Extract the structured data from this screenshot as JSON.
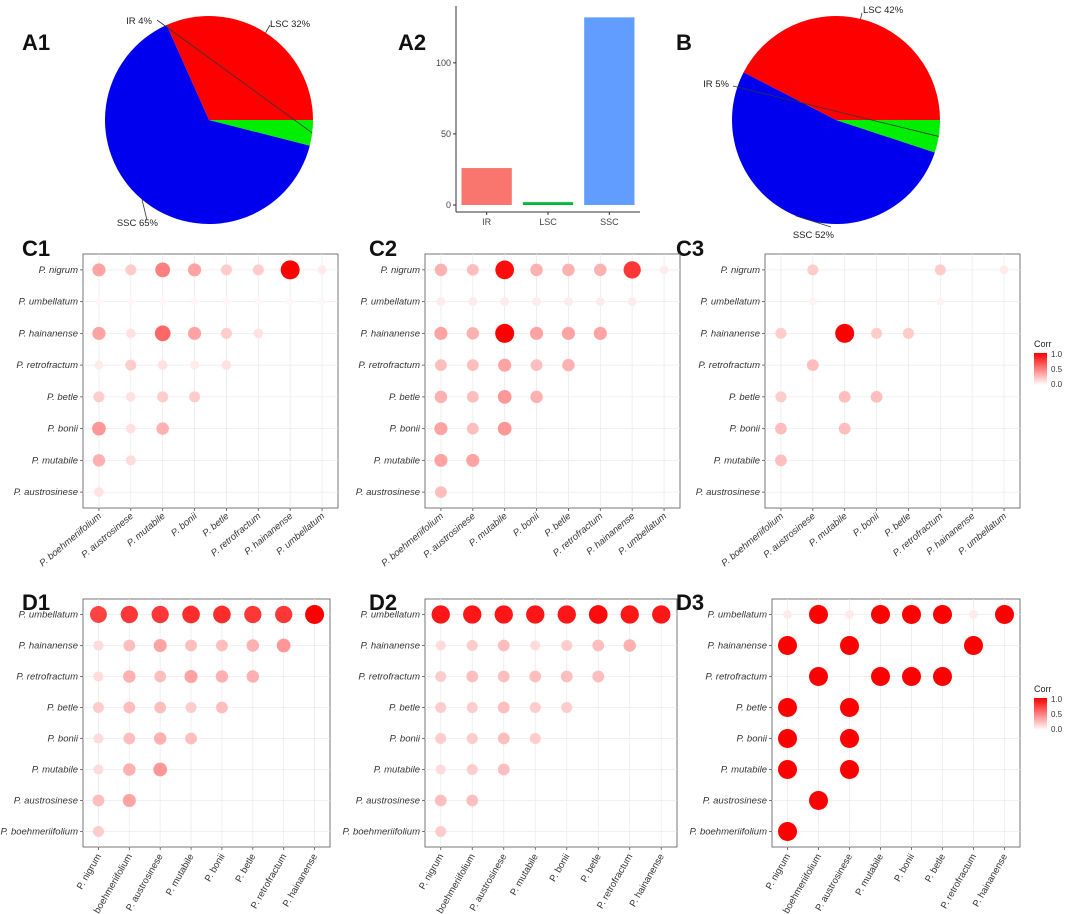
{
  "colors": {
    "lsc": "#ff0000",
    "ir": "#00ee00",
    "ssc": "#0000ee",
    "bar_ir": "#f8766d",
    "bar_lsc": "#00ba38",
    "bar_ssc": "#619cff",
    "corr_high": "#ff0000",
    "corr_low": "#ffffff"
  },
  "panels": {
    "A1": "A1",
    "A2": "A2",
    "B": "B",
    "C1": "C1",
    "C2": "C2",
    "C3": "C3",
    "D1": "D1",
    "D2": "D2",
    "D3": "D3"
  },
  "legend": {
    "title": "Corr",
    "ticks": [
      "1.0",
      "0.5",
      "0.0"
    ]
  },
  "chart_data": [
    {
      "id": "A1",
      "type": "pie",
      "slices": [
        {
          "label": "LSC 32%",
          "key": "LSC",
          "value": 32
        },
        {
          "label": "SSC 65%",
          "key": "SSC",
          "value": 65
        },
        {
          "label": "IR 4%",
          "key": "IR",
          "value": 4
        }
      ]
    },
    {
      "id": "A2",
      "type": "bar",
      "categories": [
        "IR",
        "LSC",
        "SSC"
      ],
      "values": [
        26,
        2,
        132
      ],
      "yticks": [
        "0",
        "50",
        "100"
      ],
      "ylim": [
        0,
        140
      ]
    },
    {
      "id": "B",
      "type": "pie",
      "slices": [
        {
          "label": "LSC 42%",
          "key": "LSC",
          "value": 42
        },
        {
          "label": "SSC 52%",
          "key": "SSC",
          "value": 52
        },
        {
          "label": "IR 5%",
          "key": "IR",
          "value": 5
        }
      ]
    },
    {
      "id": "C1",
      "type": "scatter",
      "subtype": "correlation-matrix",
      "rows": [
        "P. nigrum",
        "P. umbellatum",
        "P. hainanense",
        "P. retrofractum",
        "P. betle",
        "P. bonii",
        "P. mutabile",
        "P. austrosinese"
      ],
      "cols": [
        "P. boehmeriifolium",
        "P. austrosinese",
        "P. mutabile",
        "P. bonii",
        "P. betle",
        "P. retrofractum",
        "P. hainanense",
        "P. umbellatum"
      ],
      "values": [
        [
          0.3,
          0.15,
          0.45,
          0.3,
          0.15,
          0.15,
          1.0,
          0.05
        ],
        [
          0.02,
          0.02,
          0.02,
          0.02,
          0.02,
          0.02,
          0.02,
          0.02
        ],
        [
          0.3,
          0.08,
          0.55,
          0.3,
          0.15,
          0.08,
          0,
          0
        ],
        [
          0.05,
          0.15,
          0.08,
          0.05,
          0.08,
          0,
          0,
          0
        ],
        [
          0.15,
          0.08,
          0.15,
          0.15,
          0,
          0,
          0,
          0
        ],
        [
          0.35,
          0.08,
          0.25,
          0,
          0,
          0,
          0,
          0
        ],
        [
          0.25,
          0.1,
          0,
          0,
          0,
          0,
          0,
          0
        ],
        [
          0.08,
          0,
          0,
          0,
          0,
          0,
          0,
          0
        ]
      ]
    },
    {
      "id": "C2",
      "type": "scatter",
      "subtype": "correlation-matrix",
      "rows": [
        "P. nigrum",
        "P. umbellatum",
        "P. hainanense",
        "P. retrofractum",
        "P. betle",
        "P. bonii",
        "P. mutabile",
        "P. austrosinese"
      ],
      "cols": [
        "P. boehmeriifolium",
        "P. austrosinese",
        "P. mutabile",
        "P. bonii",
        "P. betle",
        "P. retrofractum",
        "P. hainanense",
        "P. umbellatum"
      ],
      "values": [
        [
          0.25,
          0.2,
          0.95,
          0.25,
          0.25,
          0.25,
          0.75,
          0.05
        ],
        [
          0.05,
          0.05,
          0.05,
          0.05,
          0.05,
          0.05,
          0.05,
          0
        ],
        [
          0.3,
          0.25,
          1.0,
          0.3,
          0.3,
          0.3,
          0,
          0
        ],
        [
          0.2,
          0.2,
          0.3,
          0.2,
          0.25,
          0,
          0,
          0
        ],
        [
          0.25,
          0.2,
          0.35,
          0.25,
          0,
          0,
          0,
          0
        ],
        [
          0.3,
          0.2,
          0.35,
          0,
          0,
          0,
          0,
          0
        ],
        [
          0.3,
          0.3,
          0,
          0,
          0,
          0,
          0,
          0
        ],
        [
          0.2,
          0,
          0,
          0,
          0,
          0,
          0,
          0
        ]
      ]
    },
    {
      "id": "C3",
      "type": "scatter",
      "subtype": "correlation-matrix",
      "rows": [
        "P. nigrum",
        "P. umbellatum",
        "P. hainanense",
        "P. retrofractum",
        "P. betle",
        "P. bonii",
        "P. mutabile",
        "P. austrosinese"
      ],
      "cols": [
        "P. boehmeriifolium",
        "P. austrosinese",
        "P. mutabile",
        "P. bonii",
        "P. betle",
        "P. retrofractum",
        "P. hainanense",
        "P. umbellatum"
      ],
      "values": [
        [
          0,
          0.15,
          0,
          0,
          0,
          0.15,
          0,
          0.05
        ],
        [
          0,
          0.03,
          0,
          0,
          0,
          0.03,
          0,
          0
        ],
        [
          0.15,
          0,
          1.0,
          0.15,
          0.15,
          0,
          0,
          0
        ],
        [
          0,
          0.2,
          0,
          0,
          0,
          0,
          0,
          0
        ],
        [
          0.15,
          0,
          0.2,
          0.2,
          0,
          0,
          0,
          0
        ],
        [
          0.2,
          0,
          0.2,
          0,
          0,
          0,
          0,
          0
        ],
        [
          0.2,
          0,
          0,
          0,
          0,
          0,
          0,
          0
        ],
        [
          0,
          0,
          0,
          0,
          0,
          0,
          0,
          0
        ]
      ]
    },
    {
      "id": "D1",
      "type": "scatter",
      "subtype": "correlation-matrix",
      "rows": [
        "P. umbellatum",
        "P. hainanense",
        "P. retrofractum",
        "P. betle",
        "P. bonii",
        "P. mutabile",
        "P. austrosinese",
        "P. boehmeriifolium"
      ],
      "cols": [
        "P. nigrum",
        "P. boehmeriifolium",
        "P. austrosinese",
        "P. mutabile",
        "P. bonii",
        "P. betle",
        "P. retrofractum",
        "P. hainanense"
      ],
      "values": [
        [
          0.7,
          0.75,
          0.75,
          0.8,
          0.8,
          0.75,
          0.75,
          1.0
        ],
        [
          0.1,
          0.2,
          0.3,
          0.2,
          0.2,
          0.25,
          0.35,
          0
        ],
        [
          0.1,
          0.25,
          0.2,
          0.3,
          0.25,
          0.25,
          0,
          0
        ],
        [
          0.15,
          0.2,
          0.2,
          0.15,
          0.2,
          0,
          0,
          0
        ],
        [
          0.1,
          0.2,
          0.25,
          0.2,
          0,
          0,
          0,
          0
        ],
        [
          0.1,
          0.25,
          0.35,
          0,
          0,
          0,
          0,
          0
        ],
        [
          0.2,
          0.3,
          0,
          0,
          0,
          0,
          0,
          0
        ],
        [
          0.15,
          0,
          0,
          0,
          0,
          0,
          0,
          0
        ]
      ]
    },
    {
      "id": "D2",
      "type": "scatter",
      "subtype": "correlation-matrix",
      "rows": [
        "P. umbellatum",
        "P. hainanense",
        "P. retrofractum",
        "P. betle",
        "P. bonii",
        "P. mutabile",
        "P. austrosinese",
        "P. boehmeriifolium"
      ],
      "cols": [
        "P. nigrum",
        "P. boehmeriifolium",
        "P. austrosinese",
        "P. mutabile",
        "P. bonii",
        "P. betle",
        "P. retrofractum",
        "P. hainanense"
      ],
      "values": [
        [
          0.9,
          0.9,
          0.9,
          0.9,
          0.9,
          0.95,
          0.9,
          0.9
        ],
        [
          0.1,
          0.15,
          0.2,
          0.1,
          0.15,
          0.2,
          0.25,
          0
        ],
        [
          0.15,
          0.2,
          0.2,
          0.2,
          0.2,
          0.2,
          0,
          0
        ],
        [
          0.15,
          0.15,
          0.2,
          0.15,
          0.15,
          0,
          0,
          0
        ],
        [
          0.15,
          0.15,
          0.2,
          0.15,
          0,
          0,
          0,
          0
        ],
        [
          0.1,
          0.15,
          0.2,
          0,
          0,
          0,
          0,
          0
        ],
        [
          0.2,
          0.2,
          0,
          0,
          0,
          0,
          0,
          0
        ],
        [
          0.15,
          0,
          0,
          0,
          0,
          0,
          0,
          0
        ]
      ]
    },
    {
      "id": "D3",
      "type": "scatter",
      "subtype": "correlation-matrix",
      "rows": [
        "P. umbellatum",
        "P. hainanense",
        "P. retrofractum",
        "P. betle",
        "P. bonii",
        "P. mutabile",
        "P. austrosinese",
        "P. boehmeriifolium"
      ],
      "cols": [
        "P. nigrum",
        "P. boehmeriifolium",
        "P. austrosinese",
        "P. mutabile",
        "P. bonii",
        "P. betle",
        "P. retrofractum",
        "P. hainanense"
      ],
      "values": [
        [
          0.05,
          1.0,
          0.05,
          1.0,
          1.0,
          1.0,
          0.05,
          1.0
        ],
        [
          1.0,
          0,
          1.0,
          0,
          0,
          0,
          1.0,
          0
        ],
        [
          0,
          1.0,
          0,
          1.0,
          1.0,
          1.0,
          0,
          0
        ],
        [
          1.0,
          0,
          1.0,
          0,
          0,
          0,
          0,
          0
        ],
        [
          1.0,
          0,
          1.0,
          0,
          0,
          0,
          0,
          0
        ],
        [
          1.0,
          0,
          1.0,
          0,
          0,
          0,
          0,
          0
        ],
        [
          0,
          1.0,
          0,
          0,
          0,
          0,
          0,
          0
        ],
        [
          1.0,
          0,
          0,
          0,
          0,
          0,
          0,
          0
        ]
      ]
    }
  ]
}
